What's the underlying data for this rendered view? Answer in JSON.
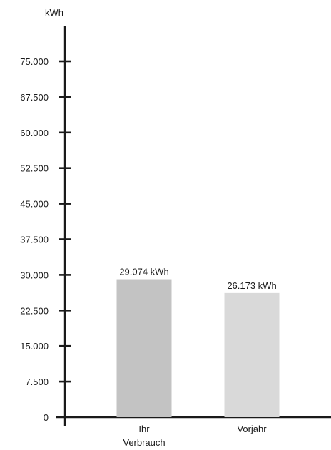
{
  "chart_data": {
    "type": "bar",
    "ylabel": "kWh",
    "ylim": [
      0,
      80000
    ],
    "yticks": [
      0,
      7500,
      15000,
      22500,
      30000,
      37500,
      45000,
      52500,
      60000,
      67500,
      75000
    ],
    "ytick_labels": [
      "0",
      "7.500",
      "15.000",
      "22.500",
      "30.000",
      "37.500",
      "45.000",
      "52.500",
      "60.000",
      "67.500",
      "75.000"
    ],
    "categories": [
      {
        "line1": "Ihr",
        "line2": "Verbrauch"
      },
      {
        "line1": "Vorjahr",
        "line2": ""
      }
    ],
    "values": [
      29074,
      26173
    ],
    "data_labels": [
      "29.074 kWh",
      "26.173 kWh"
    ],
    "colors": [
      "#c3c3c3",
      "#d9d9d9"
    ],
    "grid": false,
    "legend": "none"
  }
}
